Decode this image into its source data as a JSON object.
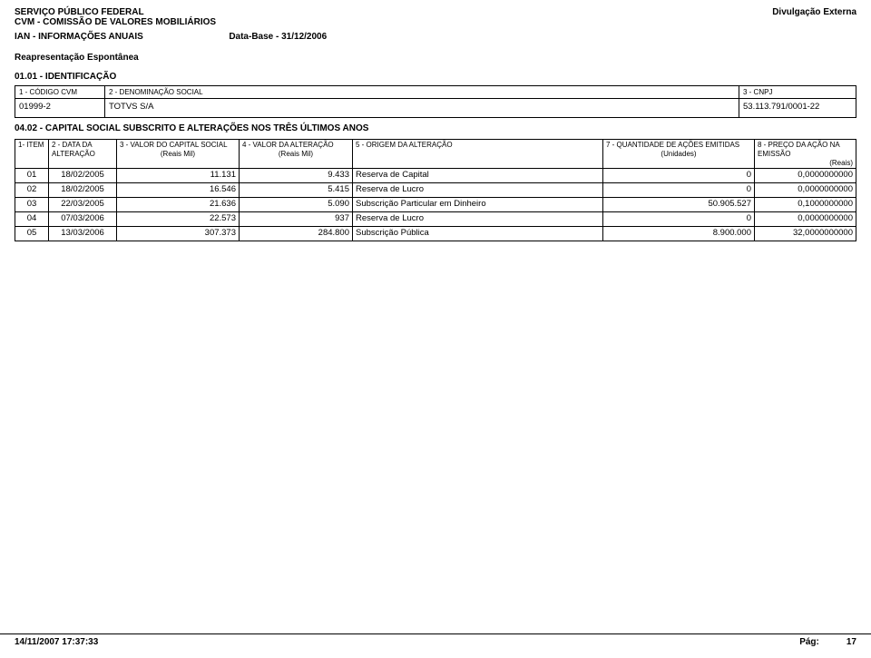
{
  "header": {
    "line1": "SERVIÇO PÚBLICO FEDERAL",
    "line2": "CVM - COMISSÃO DE VALORES MOBILIÁRIOS",
    "line3_left": "IAN - INFORMAÇÕES ANUAIS",
    "data_base_label": "Data-Base - 31/12/2006",
    "divulgacao": "Divulgação Externa",
    "reapresentacao": "Reapresentação Espontânea"
  },
  "ident": {
    "title": "01.01 - IDENTIFICAÇÃO",
    "col1_header": "1 - CÓDIGO CVM",
    "col2_header": "2 - DENOMINAÇÃO SOCIAL",
    "col3_header": "3 - CNPJ",
    "codigo": "01999-2",
    "denominacao": "TOTVS S/A",
    "cnpj": "53.113.791/0001-22"
  },
  "capital": {
    "title": "04.02 - CAPITAL SOCIAL SUBSCRITO E ALTERAÇÕES NOS TRÊS ÚLTIMOS ANOS",
    "headers": {
      "item": "1- ITEM",
      "data": "2 - DATA  DA",
      "data_sub": "ALTERAÇÃO",
      "capital": "3 - VALOR DO CAPITAL SOCIAL",
      "capital_sub": "(Reais Mil)",
      "valalt": "4 - VALOR DA ALTERAÇÃO",
      "valalt_sub": "(Reais Mil)",
      "origem": "5 - ORIGEM DA ALTERAÇÃO",
      "qtd": "7 - QUANTIDADE DE  AÇÕES EMITIDAS",
      "qtd_sub": "(Unidades)",
      "preco": "8 - PREÇO DA AÇÃO NA",
      "preco_sub1": "EMISSÃO",
      "preco_sub2": "(Reais)"
    },
    "rows": [
      {
        "item": "01",
        "data": "18/02/2005",
        "capital": "11.131",
        "valalt": "9.433",
        "origem": "Reserva de Capital",
        "qtd": "0",
        "preco": "0,0000000000"
      },
      {
        "item": "02",
        "data": "18/02/2005",
        "capital": "16.546",
        "valalt": "5.415",
        "origem": "Reserva de Lucro",
        "qtd": "0",
        "preco": "0,0000000000"
      },
      {
        "item": "03",
        "data": "22/03/2005",
        "capital": "21.636",
        "valalt": "5.090",
        "origem": "Subscrição Particular em Dinheiro",
        "qtd": "50.905.527",
        "preco": "0,1000000000"
      },
      {
        "item": "04",
        "data": "07/03/2006",
        "capital": "22.573",
        "valalt": "937",
        "origem": "Reserva de Lucro",
        "qtd": "0",
        "preco": "0,0000000000"
      },
      {
        "item": "05",
        "data": "13/03/2006",
        "capital": "307.373",
        "valalt": "284.800",
        "origem": "Subscrição Pública",
        "qtd": "8.900.000",
        "preco": "32,0000000000"
      }
    ]
  },
  "footer": {
    "timestamp": "14/11/2007 17:37:33",
    "pag_label": "Pág:",
    "pag_num": "17"
  }
}
